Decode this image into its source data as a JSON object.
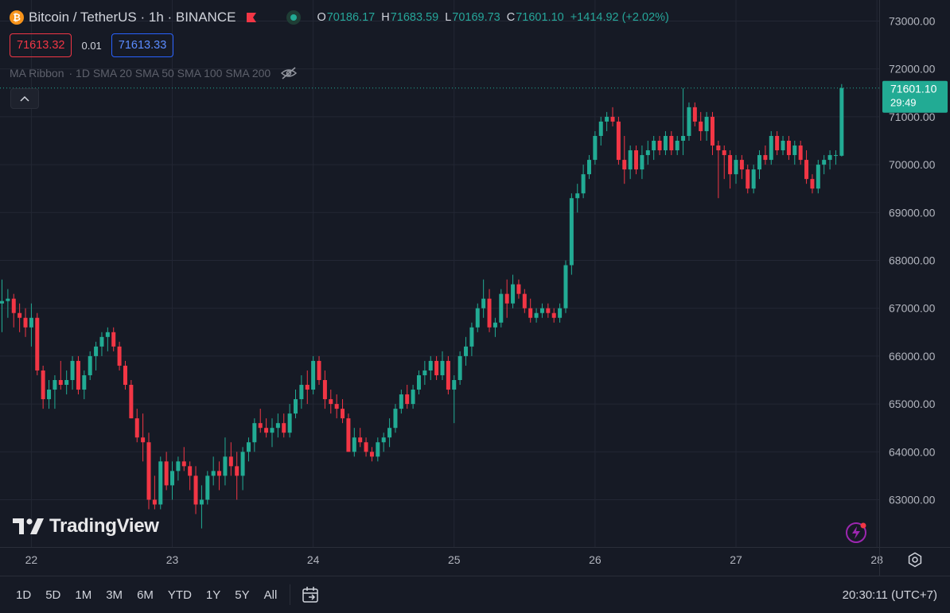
{
  "header": {
    "symbol_title": "Bitcoin / TetherUS · 1h · BINANCE",
    "coin_icon": "bitcoin-icon",
    "ohlc": {
      "o_label": "O",
      "o_value": "70186.17",
      "h_label": "H",
      "h_value": "71683.59",
      "l_label": "L",
      "l_value": "70169.73",
      "c_label": "C",
      "c_value": "71601.10",
      "change": "+1414.92 (+2.02%)"
    },
    "sell_price": "71613.32",
    "spread": "0.01",
    "buy_price": "71613.33"
  },
  "indicator": {
    "name": "MA Ribbon",
    "params": "· 1D SMA 20 SMA 50 SMA 100 SMA 200"
  },
  "watermark": {
    "text": "TradingView"
  },
  "bottom_bar": {
    "ranges": [
      "1D",
      "5D",
      "1M",
      "3M",
      "6M",
      "YTD",
      "1Y",
      "5Y",
      "All"
    ],
    "clock": "20:30:11 (UTC+7)"
  },
  "colors": {
    "background": "#161a25",
    "up": "#22ab94",
    "down": "#f23645",
    "grid": "#232734",
    "price_label_bg": "#22ab94"
  },
  "chart_data": {
    "type": "candlestick",
    "title": "Bitcoin / TetherUS · 1h · BINANCE",
    "xlabel": "",
    "ylabel": "",
    "ylim": [
      62200,
      73400
    ],
    "y_ticks": [
      "63000.00",
      "64000.00",
      "65000.00",
      "66000.00",
      "67000.00",
      "68000.00",
      "69000.00",
      "70000.00",
      "71000.00",
      "72000.00",
      "73000.00"
    ],
    "x_ticks": [
      {
        "label": "22",
        "index": 5
      },
      {
        "label": "23",
        "index": 29
      },
      {
        "label": "24",
        "index": 53
      },
      {
        "label": "25",
        "index": 77
      },
      {
        "label": "26",
        "index": 101
      },
      {
        "label": "27",
        "index": 125
      },
      {
        "label": "28",
        "index": 149
      }
    ],
    "last_price": {
      "value": 71601.1,
      "label": "71601.10",
      "countdown": "29:49"
    },
    "candles": [
      {
        "o": 67100,
        "h": 67600,
        "l": 66500,
        "c": 67150
      },
      {
        "o": 67150,
        "h": 67400,
        "l": 66800,
        "c": 67200
      },
      {
        "o": 67200,
        "h": 67300,
        "l": 66600,
        "c": 66900
      },
      {
        "o": 66900,
        "h": 67100,
        "l": 66500,
        "c": 66800
      },
      {
        "o": 66800,
        "h": 67000,
        "l": 66400,
        "c": 66600
      },
      {
        "o": 66600,
        "h": 67100,
        "l": 66200,
        "c": 66800
      },
      {
        "o": 66800,
        "h": 66900,
        "l": 65600,
        "c": 65700
      },
      {
        "o": 65700,
        "h": 65800,
        "l": 64900,
        "c": 65100
      },
      {
        "o": 65100,
        "h": 65500,
        "l": 64900,
        "c": 65300
      },
      {
        "o": 65300,
        "h": 65600,
        "l": 64900,
        "c": 65500
      },
      {
        "o": 65500,
        "h": 65900,
        "l": 65300,
        "c": 65400
      },
      {
        "o": 65400,
        "h": 65700,
        "l": 65200,
        "c": 65500
      },
      {
        "o": 65500,
        "h": 66000,
        "l": 65300,
        "c": 65900
      },
      {
        "o": 65900,
        "h": 66000,
        "l": 65200,
        "c": 65300
      },
      {
        "o": 65300,
        "h": 65700,
        "l": 65100,
        "c": 65600
      },
      {
        "o": 65600,
        "h": 66100,
        "l": 65500,
        "c": 66000
      },
      {
        "o": 66000,
        "h": 66300,
        "l": 65700,
        "c": 66200
      },
      {
        "o": 66200,
        "h": 66500,
        "l": 66000,
        "c": 66400
      },
      {
        "o": 66400,
        "h": 66600,
        "l": 66100,
        "c": 66500
      },
      {
        "o": 66500,
        "h": 66600,
        "l": 66100,
        "c": 66200
      },
      {
        "o": 66200,
        "h": 66300,
        "l": 65700,
        "c": 65800
      },
      {
        "o": 65800,
        "h": 65900,
        "l": 65300,
        "c": 65400
      },
      {
        "o": 65400,
        "h": 65500,
        "l": 64700,
        "c": 64700
      },
      {
        "o": 64700,
        "h": 64900,
        "l": 64200,
        "c": 64300
      },
      {
        "o": 64300,
        "h": 64800,
        "l": 63800,
        "c": 64200
      },
      {
        "o": 64200,
        "h": 64400,
        "l": 62800,
        "c": 63000
      },
      {
        "o": 63000,
        "h": 63500,
        "l": 62800,
        "c": 62900
      },
      {
        "o": 62900,
        "h": 63900,
        "l": 62800,
        "c": 63800
      },
      {
        "o": 63800,
        "h": 64000,
        "l": 63200,
        "c": 63300
      },
      {
        "o": 63300,
        "h": 63800,
        "l": 63000,
        "c": 63600
      },
      {
        "o": 63600,
        "h": 63900,
        "l": 63400,
        "c": 63800
      },
      {
        "o": 63800,
        "h": 64100,
        "l": 63600,
        "c": 63700
      },
      {
        "o": 63700,
        "h": 63800,
        "l": 63200,
        "c": 63500
      },
      {
        "o": 63500,
        "h": 63700,
        "l": 62700,
        "c": 62900
      },
      {
        "o": 62900,
        "h": 63300,
        "l": 62400,
        "c": 63000
      },
      {
        "o": 63000,
        "h": 63600,
        "l": 62900,
        "c": 63500
      },
      {
        "o": 63500,
        "h": 63900,
        "l": 63300,
        "c": 63600
      },
      {
        "o": 63600,
        "h": 63800,
        "l": 63200,
        "c": 63500
      },
      {
        "o": 63500,
        "h": 64300,
        "l": 63300,
        "c": 63900
      },
      {
        "o": 63900,
        "h": 64200,
        "l": 63500,
        "c": 63700
      },
      {
        "o": 63700,
        "h": 64000,
        "l": 63000,
        "c": 63500
      },
      {
        "o": 63500,
        "h": 64100,
        "l": 63200,
        "c": 64000
      },
      {
        "o": 64000,
        "h": 64300,
        "l": 63800,
        "c": 64200
      },
      {
        "o": 64200,
        "h": 64700,
        "l": 64000,
        "c": 64600
      },
      {
        "o": 64600,
        "h": 64900,
        "l": 64400,
        "c": 64500
      },
      {
        "o": 64500,
        "h": 64700,
        "l": 64300,
        "c": 64400
      },
      {
        "o": 64400,
        "h": 64700,
        "l": 64100,
        "c": 64500
      },
      {
        "o": 64500,
        "h": 64800,
        "l": 64300,
        "c": 64600
      },
      {
        "o": 64600,
        "h": 64800,
        "l": 64300,
        "c": 64400
      },
      {
        "o": 64400,
        "h": 65000,
        "l": 64300,
        "c": 64800
      },
      {
        "o": 64800,
        "h": 65300,
        "l": 64700,
        "c": 65100
      },
      {
        "o": 65100,
        "h": 65600,
        "l": 64900,
        "c": 65400
      },
      {
        "o": 65400,
        "h": 65700,
        "l": 65000,
        "c": 65300
      },
      {
        "o": 65300,
        "h": 66000,
        "l": 65200,
        "c": 65900
      },
      {
        "o": 65900,
        "h": 66000,
        "l": 65400,
        "c": 65500
      },
      {
        "o": 65500,
        "h": 65700,
        "l": 64900,
        "c": 65100
      },
      {
        "o": 65100,
        "h": 65300,
        "l": 64800,
        "c": 65000
      },
      {
        "o": 65000,
        "h": 65200,
        "l": 64700,
        "c": 64900
      },
      {
        "o": 64900,
        "h": 65100,
        "l": 64600,
        "c": 64700
      },
      {
        "o": 64700,
        "h": 64800,
        "l": 64000,
        "c": 64000
      },
      {
        "o": 64000,
        "h": 64500,
        "l": 63900,
        "c": 64300
      },
      {
        "o": 64300,
        "h": 64500,
        "l": 64100,
        "c": 64200
      },
      {
        "o": 64200,
        "h": 64300,
        "l": 63900,
        "c": 64000
      },
      {
        "o": 64000,
        "h": 64100,
        "l": 63800,
        "c": 63900
      },
      {
        "o": 63900,
        "h": 64300,
        "l": 63800,
        "c": 64200
      },
      {
        "o": 64200,
        "h": 64400,
        "l": 64000,
        "c": 64300
      },
      {
        "o": 64300,
        "h": 64700,
        "l": 64100,
        "c": 64500
      },
      {
        "o": 64500,
        "h": 65000,
        "l": 64400,
        "c": 64900
      },
      {
        "o": 64900,
        "h": 65300,
        "l": 64800,
        "c": 65200
      },
      {
        "o": 65200,
        "h": 65400,
        "l": 64900,
        "c": 65000
      },
      {
        "o": 65000,
        "h": 65400,
        "l": 64900,
        "c": 65300
      },
      {
        "o": 65300,
        "h": 65700,
        "l": 65200,
        "c": 65600
      },
      {
        "o": 65600,
        "h": 65900,
        "l": 65400,
        "c": 65700
      },
      {
        "o": 65700,
        "h": 66000,
        "l": 65500,
        "c": 65900
      },
      {
        "o": 65900,
        "h": 66000,
        "l": 65500,
        "c": 65600
      },
      {
        "o": 65600,
        "h": 66100,
        "l": 65500,
        "c": 65900
      },
      {
        "o": 65900,
        "h": 66000,
        "l": 65200,
        "c": 65300
      },
      {
        "o": 65300,
        "h": 65600,
        "l": 64600,
        "c": 65500
      },
      {
        "o": 65500,
        "h": 66100,
        "l": 65400,
        "c": 66000
      },
      {
        "o": 66000,
        "h": 66400,
        "l": 65800,
        "c": 66200
      },
      {
        "o": 66200,
        "h": 66700,
        "l": 66000,
        "c": 66600
      },
      {
        "o": 66600,
        "h": 67100,
        "l": 66500,
        "c": 67000
      },
      {
        "o": 67000,
        "h": 67600,
        "l": 66800,
        "c": 67200
      },
      {
        "o": 67200,
        "h": 67400,
        "l": 66500,
        "c": 66600
      },
      {
        "o": 66600,
        "h": 66800,
        "l": 66400,
        "c": 66700
      },
      {
        "o": 66700,
        "h": 67400,
        "l": 66600,
        "c": 67300
      },
      {
        "o": 67300,
        "h": 67600,
        "l": 66800,
        "c": 67100
      },
      {
        "o": 67100,
        "h": 67700,
        "l": 67000,
        "c": 67500
      },
      {
        "o": 67500,
        "h": 67600,
        "l": 67200,
        "c": 67300
      },
      {
        "o": 67300,
        "h": 67400,
        "l": 66900,
        "c": 67000
      },
      {
        "o": 67000,
        "h": 67200,
        "l": 66700,
        "c": 66800
      },
      {
        "o": 66800,
        "h": 67000,
        "l": 66700,
        "c": 66900
      },
      {
        "o": 66900,
        "h": 67100,
        "l": 66800,
        "c": 67000
      },
      {
        "o": 67000,
        "h": 67100,
        "l": 66800,
        "c": 66900
      },
      {
        "o": 66900,
        "h": 67000,
        "l": 66700,
        "c": 66800
      },
      {
        "o": 66800,
        "h": 67100,
        "l": 66700,
        "c": 67000
      },
      {
        "o": 67000,
        "h": 68000,
        "l": 66900,
        "c": 67900
      },
      {
        "o": 67900,
        "h": 69400,
        "l": 67700,
        "c": 69300
      },
      {
        "o": 69300,
        "h": 69600,
        "l": 69000,
        "c": 69400
      },
      {
        "o": 69400,
        "h": 70000,
        "l": 69300,
        "c": 69800
      },
      {
        "o": 69800,
        "h": 70200,
        "l": 69700,
        "c": 70100
      },
      {
        "o": 70100,
        "h": 70700,
        "l": 70000,
        "c": 70600
      },
      {
        "o": 70600,
        "h": 71000,
        "l": 70400,
        "c": 70900
      },
      {
        "o": 70900,
        "h": 71100,
        "l": 70700,
        "c": 71000
      },
      {
        "o": 71000,
        "h": 71200,
        "l": 70800,
        "c": 70900
      },
      {
        "o": 70900,
        "h": 71000,
        "l": 70000,
        "c": 70100
      },
      {
        "o": 70100,
        "h": 70600,
        "l": 69600,
        "c": 69900
      },
      {
        "o": 69900,
        "h": 70400,
        "l": 69700,
        "c": 70300
      },
      {
        "o": 70300,
        "h": 70400,
        "l": 69800,
        "c": 69900
      },
      {
        "o": 69900,
        "h": 70400,
        "l": 69700,
        "c": 70200
      },
      {
        "o": 70200,
        "h": 70500,
        "l": 70000,
        "c": 70300
      },
      {
        "o": 70300,
        "h": 70600,
        "l": 70100,
        "c": 70500
      },
      {
        "o": 70500,
        "h": 70600,
        "l": 70200,
        "c": 70300
      },
      {
        "o": 70300,
        "h": 70700,
        "l": 70200,
        "c": 70600
      },
      {
        "o": 70600,
        "h": 70700,
        "l": 70200,
        "c": 70300
      },
      {
        "o": 70300,
        "h": 70600,
        "l": 70200,
        "c": 70500
      },
      {
        "o": 70500,
        "h": 71600,
        "l": 70200,
        "c": 70600
      },
      {
        "o": 70600,
        "h": 71300,
        "l": 70500,
        "c": 71200
      },
      {
        "o": 71200,
        "h": 71300,
        "l": 70800,
        "c": 70900
      },
      {
        "o": 70900,
        "h": 71100,
        "l": 70500,
        "c": 70700
      },
      {
        "o": 70700,
        "h": 71100,
        "l": 70500,
        "c": 71000
      },
      {
        "o": 71000,
        "h": 71100,
        "l": 70200,
        "c": 70400
      },
      {
        "o": 70400,
        "h": 70500,
        "l": 69300,
        "c": 70300
      },
      {
        "o": 70300,
        "h": 70400,
        "l": 69700,
        "c": 70200
      },
      {
        "o": 70200,
        "h": 70300,
        "l": 69500,
        "c": 69800
      },
      {
        "o": 69800,
        "h": 70200,
        "l": 69600,
        "c": 70100
      },
      {
        "o": 70100,
        "h": 70200,
        "l": 69700,
        "c": 69900
      },
      {
        "o": 69900,
        "h": 70000,
        "l": 69400,
        "c": 69500
      },
      {
        "o": 69500,
        "h": 70000,
        "l": 69400,
        "c": 69900
      },
      {
        "o": 69900,
        "h": 70300,
        "l": 69700,
        "c": 70200
      },
      {
        "o": 70200,
        "h": 70400,
        "l": 70000,
        "c": 70100
      },
      {
        "o": 70100,
        "h": 70700,
        "l": 70000,
        "c": 70600
      },
      {
        "o": 70600,
        "h": 70700,
        "l": 70200,
        "c": 70300
      },
      {
        "o": 70300,
        "h": 70600,
        "l": 70200,
        "c": 70500
      },
      {
        "o": 70500,
        "h": 70600,
        "l": 70100,
        "c": 70200
      },
      {
        "o": 70200,
        "h": 70500,
        "l": 70000,
        "c": 70400
      },
      {
        "o": 70400,
        "h": 70500,
        "l": 70000,
        "c": 70100
      },
      {
        "o": 70100,
        "h": 70300,
        "l": 69600,
        "c": 69700
      },
      {
        "o": 69700,
        "h": 69800,
        "l": 69400,
        "c": 69500
      },
      {
        "o": 69500,
        "h": 70100,
        "l": 69400,
        "c": 70000
      },
      {
        "o": 70000,
        "h": 70200,
        "l": 69800,
        "c": 70100
      },
      {
        "o": 70100,
        "h": 70300,
        "l": 69900,
        "c": 70200
      },
      {
        "o": 70200,
        "h": 70300,
        "l": 70000,
        "c": 70200
      },
      {
        "o": 70186.17,
        "h": 71683.59,
        "l": 70169.73,
        "c": 71601.1
      }
    ]
  }
}
